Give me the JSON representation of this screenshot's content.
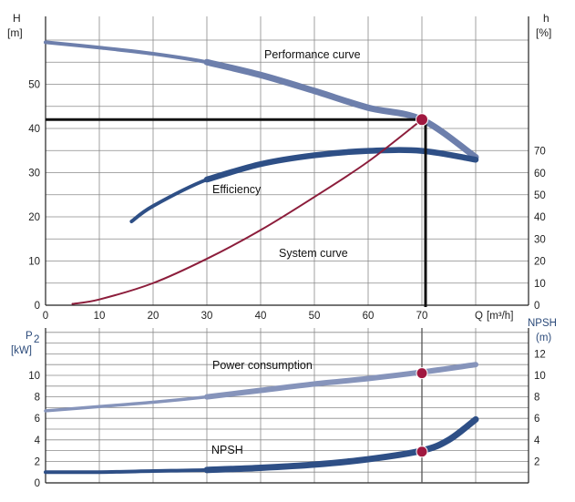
{
  "chart_data": [
    {
      "type": "line",
      "title": "",
      "xlabel": "Q [m³/h]",
      "ylabel": "H [m]",
      "y2label": "h [%]",
      "x_axis": {
        "label": "Q",
        "unit": "[m³/h]",
        "ticks": [
          "0",
          "10",
          "20",
          "30",
          "40",
          "50",
          "60",
          "70"
        ],
        "range": [
          0,
          85
        ]
      },
      "y_left": {
        "label": "H",
        "unit": "[m]",
        "ticks": [
          "0",
          "10",
          "20",
          "30",
          "40",
          "50"
        ],
        "range": [
          0,
          60
        ]
      },
      "y_right": {
        "label": "h",
        "unit": "[%]",
        "ticks": [
          "0",
          "10",
          "20",
          "30",
          "40",
          "50",
          "60",
          "70"
        ],
        "range_note": "efficiency scale"
      },
      "grid": true,
      "series": [
        {
          "name": "Performance curve",
          "color": "#6d7fac",
          "x": [
            0,
            10,
            20,
            30,
            40,
            50,
            60,
            70,
            80
          ],
          "y": [
            59.5,
            58.3,
            56.9,
            55.0,
            52.1,
            48.5,
            44.7,
            42.0,
            33.5
          ]
        },
        {
          "name": "Efficiency",
          "color": "#2e4f86",
          "x": [
            16,
            20,
            30,
            40,
            50,
            60,
            70,
            80
          ],
          "y": [
            38,
            45,
            57,
            64,
            68,
            70,
            70,
            66
          ]
        },
        {
          "name": "System curve",
          "color": "#8c1d3b",
          "x": [
            5,
            10,
            20,
            30,
            40,
            50,
            60,
            70
          ],
          "y": [
            0.3,
            1.3,
            5.0,
            10.5,
            17.0,
            24.5,
            32.5,
            42.0
          ]
        }
      ],
      "annotations": [
        {
          "text": "Performance curve"
        },
        {
          "text": "Efficiency"
        },
        {
          "text": "System curve"
        }
      ],
      "operating_point": {
        "x": 70,
        "y": 42
      }
    },
    {
      "type": "line",
      "title": "",
      "xlabel": "",
      "ylabel": "P₂ [kW]",
      "y2label": "NPSH (m)",
      "y_left": {
        "label": "P",
        "subscript": "2",
        "unit": "[kW]",
        "ticks": [
          "0",
          "2",
          "4",
          "6",
          "8",
          "10"
        ],
        "range": [
          0,
          12
        ]
      },
      "y_right": {
        "label": "NPSH",
        "unit": "(m)",
        "ticks": [
          "2",
          "4",
          "6",
          "8",
          "10",
          "12"
        ],
        "range": [
          0,
          12
        ]
      },
      "grid": true,
      "series": [
        {
          "name": "Power consumption",
          "color": "#8694bb",
          "x": [
            0,
            10,
            20,
            30,
            40,
            50,
            60,
            70,
            80
          ],
          "y": [
            6.7,
            7.1,
            7.5,
            8.0,
            8.6,
            9.2,
            9.7,
            10.3,
            11.0
          ]
        },
        {
          "name": "NPSH",
          "color": "#2e4f86",
          "x": [
            0,
            10,
            20,
            30,
            40,
            50,
            60,
            70,
            75,
            80
          ],
          "y": [
            1.0,
            1.0,
            1.1,
            1.2,
            1.4,
            1.7,
            2.2,
            3.0,
            4.0,
            5.9
          ]
        }
      ],
      "annotations": [
        {
          "text": "Power consumption"
        },
        {
          "text": "NPSH"
        }
      ],
      "operating_points": [
        {
          "x": 70,
          "y": 10.2
        },
        {
          "x": 70,
          "y": 2.9
        }
      ]
    }
  ]
}
